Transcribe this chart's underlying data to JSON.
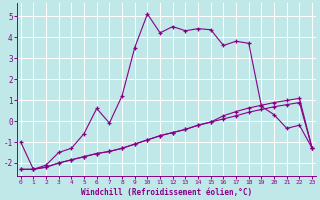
{
  "xlabel": "Windchill (Refroidissement éolien,°C)",
  "bg_color": "#c0e8e8",
  "line_color": "#880088",
  "grid_color": "#b0d8d8",
  "x_ticks": [
    0,
    1,
    2,
    3,
    4,
    5,
    6,
    7,
    8,
    9,
    10,
    11,
    12,
    13,
    14,
    15,
    16,
    17,
    18,
    19,
    20,
    21,
    22,
    23
  ],
  "y_ticks": [
    -2,
    -1,
    0,
    1,
    2,
    3,
    4,
    5
  ],
  "ylim": [
    -2.6,
    5.6
  ],
  "xlim": [
    -0.3,
    23.3
  ],
  "series1_x": [
    0,
    1,
    2,
    3,
    4,
    5,
    6,
    7,
    8,
    9,
    10,
    11,
    12,
    13,
    14,
    15,
    16,
    17,
    18,
    19,
    20,
    21,
    22,
    23
  ],
  "series1_y": [
    -1.0,
    -2.3,
    -2.1,
    -1.5,
    -1.3,
    -0.6,
    0.6,
    -0.1,
    1.2,
    3.5,
    5.1,
    4.2,
    4.5,
    4.3,
    4.4,
    4.35,
    3.6,
    3.8,
    3.7,
    0.7,
    0.3,
    -0.35,
    -0.2,
    -1.3
  ],
  "series2_x": [
    0,
    1,
    2,
    3,
    4,
    5,
    6,
    7,
    8,
    9,
    10,
    11,
    12,
    13,
    14,
    15,
    16,
    17,
    18,
    19,
    20,
    21,
    22,
    23
  ],
  "series2_y": [
    -2.3,
    -2.3,
    -2.2,
    -2.0,
    -1.85,
    -1.7,
    -1.55,
    -1.45,
    -1.3,
    -1.1,
    -0.9,
    -0.7,
    -0.55,
    -0.4,
    -0.2,
    -0.05,
    0.1,
    0.25,
    0.42,
    0.55,
    0.68,
    0.78,
    0.88,
    -1.3
  ],
  "series3_x": [
    0,
    1,
    2,
    3,
    4,
    5,
    6,
    7,
    8,
    9,
    10,
    11,
    12,
    13,
    14,
    15,
    16,
    17,
    18,
    19,
    20,
    21,
    22,
    23
  ],
  "series3_y": [
    -2.3,
    -2.3,
    -2.2,
    -2.0,
    -1.85,
    -1.7,
    -1.55,
    -1.45,
    -1.3,
    -1.1,
    -0.9,
    -0.7,
    -0.55,
    -0.4,
    -0.2,
    -0.05,
    0.25,
    0.45,
    0.62,
    0.75,
    0.88,
    0.98,
    1.08,
    -1.3
  ]
}
